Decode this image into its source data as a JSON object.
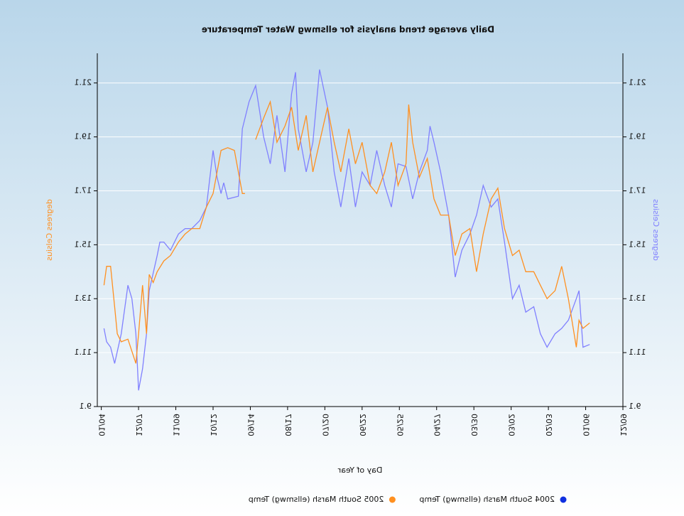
{
  "chart_data": {
    "type": "line",
    "title": "Daily average trend analysis for ellsmwg Water Temperature",
    "x_label": "Day of Year",
    "y_label": "degrees Celsius",
    "y2_label": "degrees Celsius",
    "xlim": [
      0,
      395
    ],
    "xticks": [
      {
        "value": 0,
        "label": "12/09"
      },
      {
        "value": 28,
        "label": "01/06"
      },
      {
        "value": 56,
        "label": "02/03"
      },
      {
        "value": 84,
        "label": "03/02"
      },
      {
        "value": 112,
        "label": "03/30"
      },
      {
        "value": 140,
        "label": "04/27"
      },
      {
        "value": 168,
        "label": "05/25"
      },
      {
        "value": 196,
        "label": "06/22"
      },
      {
        "value": 224,
        "label": "07/20"
      },
      {
        "value": 252,
        "label": "08/17"
      },
      {
        "value": 280,
        "label": "09/14"
      },
      {
        "value": 308,
        "label": "10/12"
      },
      {
        "value": 336,
        "label": "11/09"
      },
      {
        "value": 364,
        "label": "12/07"
      },
      {
        "value": 392,
        "label": "01/04"
      }
    ],
    "ylim": [
      9.1,
      22.2
    ],
    "yticks": [
      9.1,
      11.1,
      13.1,
      15.1,
      17.1,
      19.1,
      21.1
    ],
    "y2lim": [
      9.1,
      22.2
    ],
    "y2ticks": [
      9.1,
      11.1,
      13.1,
      15.1,
      17.1,
      19.1,
      21.1
    ],
    "grid": true,
    "series": [
      {
        "name": "2004 South Marsh (ellsmwg) Temp",
        "color": "#8080ff",
        "x": [
          25,
          30,
          33,
          35,
          41,
          46,
          51,
          57,
          62,
          67,
          73,
          78,
          83,
          89,
          94,
          99,
          105,
          110,
          115,
          121,
          126,
          131,
          137,
          142,
          145,
          147,
          153,
          158,
          163,
          169,
          174,
          179,
          185,
          190,
          196,
          201,
          206,
          212,
          217,
          222,
          228,
          233,
          238,
          244,
          246,
          249,
          254,
          260,
          265,
          270,
          276,
          281,
          286,
          289,
          297,
          300,
          302,
          305,
          308,
          313,
          318,
          324,
          329,
          334,
          340,
          345,
          348,
          350,
          356,
          358,
          361,
          364,
          366,
          369,
          372,
          377,
          382,
          385,
          388,
          390
        ],
        "values": [
          11.4,
          11.3,
          13.4,
          13.1,
          12.3,
          12.0,
          11.8,
          11.3,
          11.8,
          12.8,
          12.6,
          13.6,
          13.1,
          15.2,
          16.8,
          16.5,
          17.3,
          16.2,
          15.5,
          14.9,
          13.9,
          16.2,
          17.8,
          18.9,
          19.5,
          18.6,
          17.8,
          16.8,
          18.0,
          18.1,
          16.5,
          17.3,
          18.6,
          17.3,
          17.8,
          16.5,
          18.3,
          16.5,
          17.8,
          20.2,
          21.6,
          18.9,
          17.8,
          19.4,
          21.5,
          20.7,
          17.8,
          19.9,
          18.1,
          19.1,
          21.0,
          20.4,
          19.4,
          16.9,
          16.8,
          17.4,
          17.0,
          17.6,
          18.6,
          16.5,
          16.0,
          15.7,
          15.7,
          15.5,
          14.9,
          15.2,
          15.2,
          14.7,
          13.4,
          11.8,
          10.5,
          9.7,
          11.8,
          13.1,
          13.6,
          11.8,
          10.7,
          11.3,
          11.5,
          12.0
        ]
      },
      {
        "name": "2005 South Marsh (ellsmwg) Temp",
        "color": "#ff9020",
        "axis": "y2",
        "x": [
          25,
          30,
          33,
          35,
          41,
          46,
          51,
          57,
          62,
          67,
          73,
          78,
          83,
          89,
          94,
          99,
          105,
          110,
          115,
          121,
          126,
          131,
          137,
          142,
          147,
          153,
          158,
          161,
          163,
          169,
          174,
          179,
          185,
          190,
          196,
          201,
          206,
          212,
          217,
          222,
          228,
          233,
          238,
          244,
          249,
          254,
          260,
          265,
          270,
          276,
          281,
          284,
          286,
          292,
          297,
          302,
          308,
          313,
          318,
          324,
          329,
          334,
          340,
          345,
          350,
          353,
          356,
          358,
          361,
          364,
          366,
          372,
          377,
          380,
          382,
          385,
          388,
          390
        ],
        "values": [
          12.2,
          12.0,
          12.3,
          11.3,
          13.1,
          14.3,
          13.4,
          13.1,
          13.6,
          14.1,
          14.1,
          14.9,
          14.7,
          15.7,
          17.2,
          16.8,
          15.5,
          14.1,
          15.7,
          15.5,
          14.7,
          16.2,
          16.2,
          16.8,
          18.3,
          17.6,
          18.9,
          20.3,
          18.1,
          17.3,
          18.9,
          17.8,
          17.0,
          17.3,
          18.9,
          18.1,
          19.4,
          17.8,
          18.9,
          20.2,
          18.9,
          17.8,
          19.9,
          18.6,
          20.2,
          19.5,
          18.9,
          20.4,
          19.8,
          19.0,
          null,
          17.0,
          17.0,
          18.6,
          18.7,
          18.6,
          17.0,
          16.5,
          15.7,
          15.7,
          15.5,
          15.2,
          14.7,
          14.5,
          14.1,
          13.7,
          14.0,
          11.8,
          13.6,
          11.8,
          10.7,
          11.6,
          11.5,
          11.8,
          12.8,
          14.3,
          14.3,
          13.6
        ]
      }
    ]
  }
}
